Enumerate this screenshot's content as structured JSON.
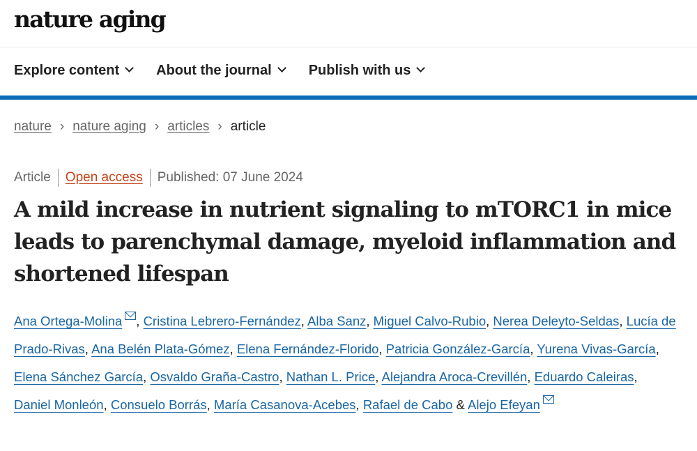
{
  "site": {
    "logo": "nature aging"
  },
  "nav": [
    {
      "label": "Explore content"
    },
    {
      "label": "About the journal"
    },
    {
      "label": "Publish with us"
    }
  ],
  "breadcrumb": [
    {
      "label": "nature"
    },
    {
      "label": "nature aging"
    },
    {
      "label": "articles"
    },
    {
      "label": "article"
    }
  ],
  "meta": {
    "type": "Article",
    "access": "Open access",
    "published": "Published: 07 June 2024"
  },
  "title": "A mild increase in nutrient signaling to mTORC1 in mice leads to parenchymal damage, myeloid inflammation and shortened lifespan",
  "authors": [
    "Ana Ortega-Molina",
    "Cristina Lebrero-Fernández",
    "Alba Sanz",
    "Miguel Calvo-Rubio",
    "Nerea Deleyto-Seldas",
    "Lucía de Prado-Rivas",
    "Ana Belén Plata-Gómez",
    "Elena Fernández-Florido",
    "Patricia González-García",
    "Yurena Vivas-García",
    "Elena Sánchez García",
    "Osvaldo Graña-Castro",
    "Nathan L. Price",
    "Alejandra Aroca-Crevillén",
    "Eduardo Caleiras",
    "Daniel Monleón",
    "Consuelo Borrás",
    "María Casanova-Acebes",
    "Rafael de Cabo",
    "Alejo Efeyan"
  ],
  "authors_separator": ", ",
  "authors_last_separator": " & ",
  "corresponding_authors": [
    0,
    19
  ],
  "colors": {
    "accent_bar": "#0a6cb4",
    "open_access": "#c4441b",
    "link": "#1a66a4"
  }
}
